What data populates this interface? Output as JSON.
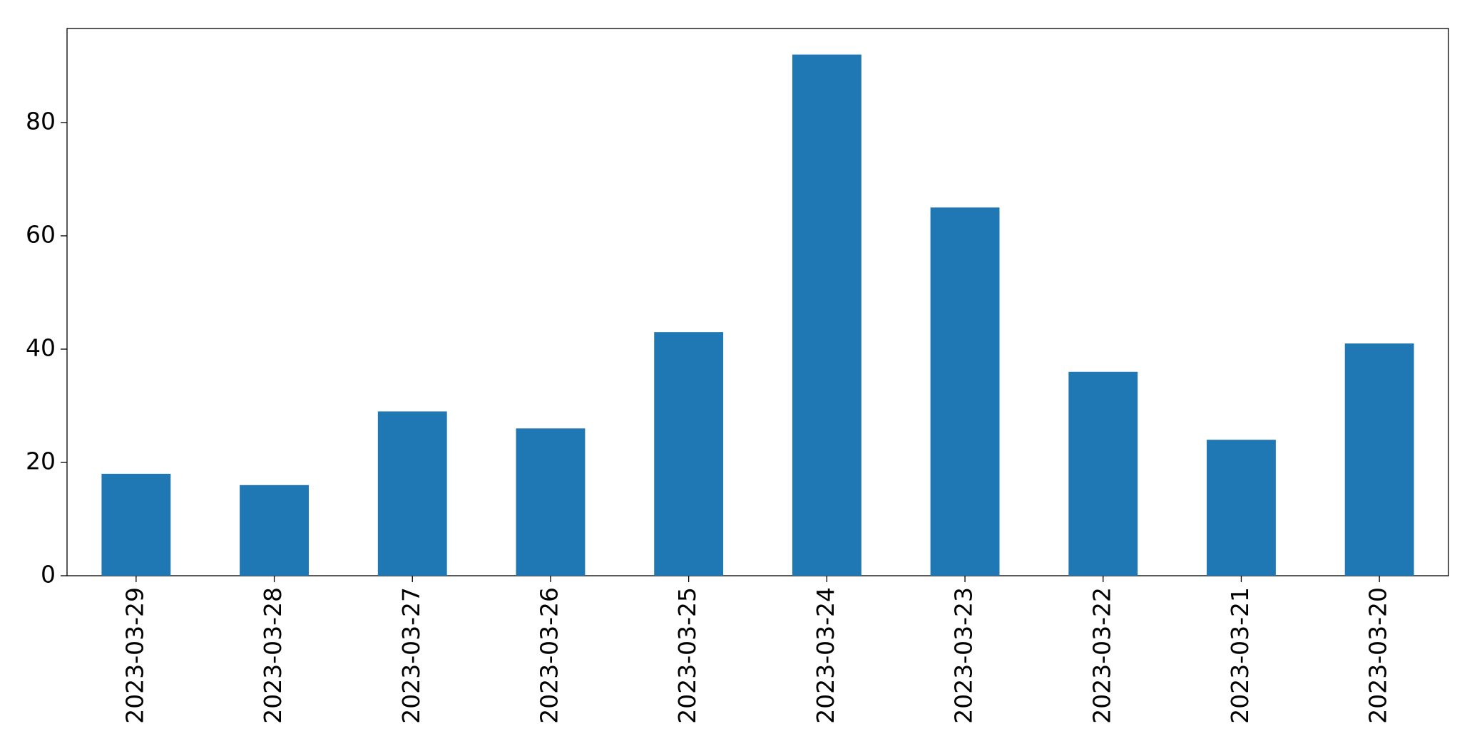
{
  "chart_data": {
    "type": "bar",
    "categories": [
      "2023-03-29",
      "2023-03-28",
      "2023-03-27",
      "2023-03-26",
      "2023-03-25",
      "2023-03-24",
      "2023-03-23",
      "2023-03-22",
      "2023-03-21",
      "2023-03-20"
    ],
    "values": [
      18,
      16,
      29,
      26,
      43,
      92,
      65,
      36,
      24,
      41
    ],
    "color": "#1f77b4",
    "ylim": [
      0,
      96.6
    ],
    "yticks": [
      0,
      20,
      40,
      60,
      80
    ],
    "grid": false
  }
}
